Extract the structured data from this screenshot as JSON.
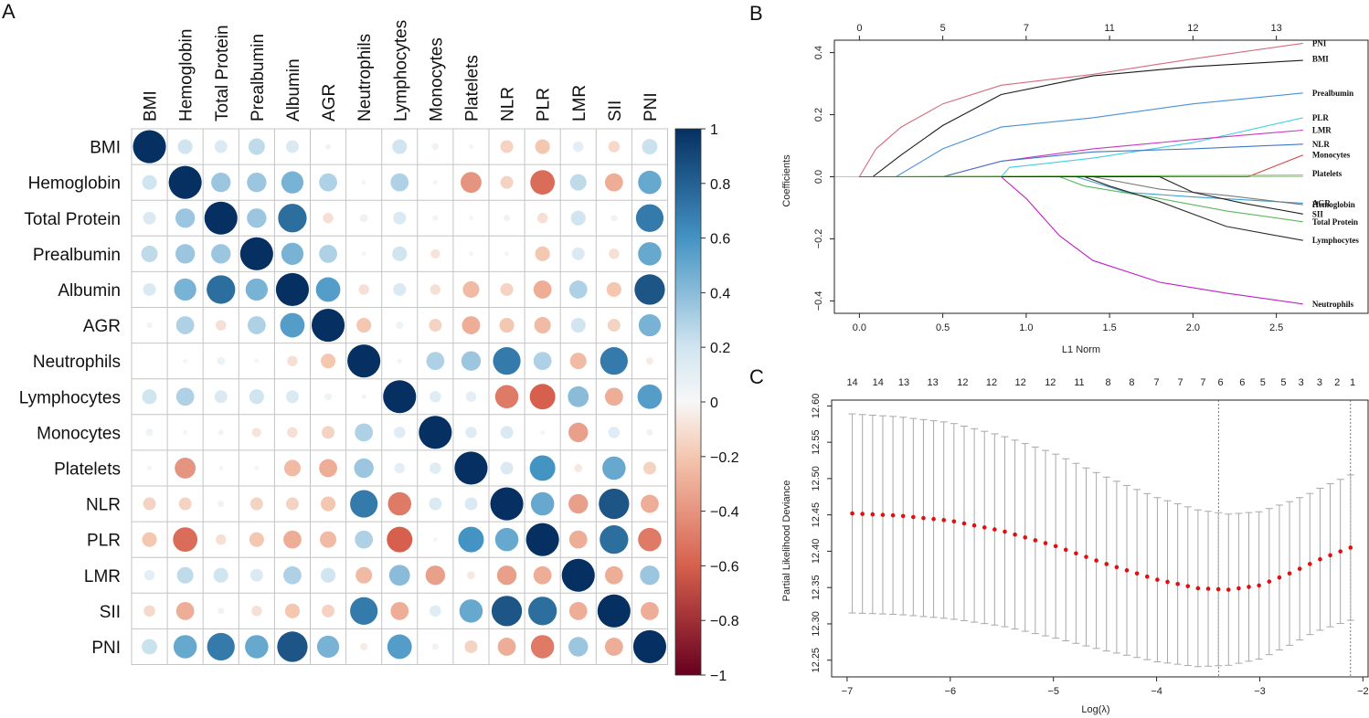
{
  "panels": {
    "a": "A",
    "b": "B",
    "c": "C"
  },
  "chart_data": [
    {
      "type": "heatmap",
      "panel": "A",
      "variables": [
        "BMI",
        "Hemoglobin",
        "Total Protein",
        "Prealbumin",
        "Albumin",
        "AGR",
        "Neutrophils",
        "Lymphocytes",
        "Monocytes",
        "Platelets",
        "NLR",
        "PLR",
        "LMR",
        "SII",
        "PNI"
      ],
      "values": [
        [
          1,
          0.2,
          0.15,
          0.25,
          0.15,
          0.03,
          0,
          0.2,
          0.05,
          0.02,
          -0.15,
          -0.2,
          0.1,
          -0.12,
          0.22
        ],
        [
          0.2,
          1,
          0.35,
          0.35,
          0.45,
          0.3,
          0.02,
          0.3,
          0.02,
          -0.4,
          -0.15,
          -0.55,
          0.25,
          -0.3,
          0.5
        ],
        [
          0.15,
          0.35,
          1,
          0.35,
          0.75,
          -0.1,
          0.06,
          0.15,
          0.03,
          0.02,
          0.04,
          -0.1,
          0.2,
          0.04,
          0.7
        ],
        [
          0.25,
          0.35,
          0.35,
          1,
          0.45,
          0.3,
          0.02,
          0.2,
          -0.08,
          0.02,
          0.02,
          -0.2,
          0.15,
          -0.1,
          0.5
        ],
        [
          0.15,
          0.45,
          0.75,
          0.45,
          1,
          0.55,
          -0.1,
          0.15,
          -0.1,
          -0.25,
          -0.15,
          -0.3,
          0.3,
          -0.2,
          0.85
        ],
        [
          0.03,
          0.3,
          -0.1,
          0.3,
          0.55,
          1,
          -0.2,
          0.05,
          -0.15,
          -0.3,
          -0.2,
          -0.25,
          0.2,
          -0.15,
          0.45
        ],
        [
          0,
          0.02,
          0.06,
          0.02,
          -0.1,
          -0.2,
          1,
          -0.02,
          0.3,
          0.35,
          0.7,
          0.3,
          -0.25,
          0.7,
          -0.05
        ],
        [
          0.2,
          0.3,
          0.15,
          0.2,
          0.15,
          0.05,
          -0.02,
          1,
          0.12,
          0.1,
          -0.5,
          -0.6,
          0.4,
          -0.3,
          0.55
        ],
        [
          0.05,
          0.02,
          0.03,
          -0.08,
          -0.1,
          -0.15,
          0.3,
          0.12,
          1,
          0.12,
          0.15,
          0.02,
          -0.35,
          0.12,
          0.04
        ],
        [
          0.02,
          -0.4,
          0.02,
          0.02,
          -0.25,
          -0.3,
          0.35,
          0.1,
          0.12,
          1,
          0.15,
          0.6,
          -0.06,
          0.5,
          -0.15
        ],
        [
          -0.15,
          -0.15,
          0.04,
          -0.15,
          -0.15,
          -0.2,
          0.7,
          -0.5,
          0.15,
          0.15,
          1,
          0.5,
          -0.35,
          0.85,
          -0.3
        ],
        [
          -0.2,
          -0.55,
          -0.1,
          -0.2,
          -0.3,
          -0.25,
          0.3,
          -0.6,
          0.02,
          0.6,
          0.5,
          1,
          -0.3,
          0.75,
          -0.5
        ],
        [
          0.1,
          0.25,
          0.2,
          0.15,
          0.3,
          0.2,
          -0.25,
          0.4,
          -0.35,
          -0.06,
          -0.35,
          -0.3,
          1,
          -0.3,
          0.35
        ],
        [
          -0.12,
          -0.3,
          0.04,
          -0.1,
          -0.2,
          -0.15,
          0.7,
          -0.3,
          0.12,
          0.5,
          0.85,
          0.75,
          -0.3,
          1,
          -0.3
        ],
        [
          0.22,
          0.5,
          0.7,
          0.5,
          0.85,
          0.45,
          -0.05,
          0.55,
          0.04,
          -0.15,
          -0.3,
          -0.5,
          0.35,
          -0.3,
          1
        ]
      ],
      "colorbar": {
        "ticks": [
          "1",
          "0.8",
          "0.6",
          "0.4",
          "0.2",
          "0",
          "−0.2",
          "−0.4",
          "−0.6",
          "−0.8",
          "−1"
        ],
        "low": "#67001f",
        "mid": "#f7f7f7",
        "high": "#053061"
      }
    },
    {
      "type": "line",
      "panel": "B",
      "title": "",
      "xlabel": "L1 Norm",
      "ylabel": "Coefficients",
      "xlim": [
        -0.15,
        3.05
      ],
      "ylim": [
        -0.44,
        0.44
      ],
      "xticks": [
        "0.0",
        "0.5",
        "1.0",
        "1.5",
        "2.0",
        "2.5"
      ],
      "xtick_values": [
        0,
        0.5,
        1,
        1.5,
        2,
        2.5
      ],
      "yticks": [
        "−0.4",
        "−0.2",
        "0.0",
        "0.2",
        "0.4"
      ],
      "ytick_values": [
        -0.4,
        -0.2,
        0,
        0.2,
        0.4
      ],
      "top_ticks": [
        "0",
        "5",
        "7",
        "11",
        "12",
        "13"
      ],
      "top_tick_values": [
        0,
        0.5,
        1.0,
        1.5,
        2.0,
        2.5
      ],
      "series": [
        {
          "name": "PNI",
          "color": "#d46a7e",
          "label_y": 0.43,
          "points": [
            [
              0,
              0
            ],
            [
              0.1,
              0.09
            ],
            [
              0.25,
              0.16
            ],
            [
              0.5,
              0.235
            ],
            [
              0.85,
              0.295
            ],
            [
              1.4,
              0.33
            ],
            [
              2.0,
              0.38
            ],
            [
              2.66,
              0.43
            ]
          ]
        },
        {
          "name": "BMI",
          "color": "#1a1a1a",
          "label_y": 0.38,
          "points": [
            [
              0,
              0
            ],
            [
              0.08,
              0
            ],
            [
              0.25,
              0.07
            ],
            [
              0.5,
              0.165
            ],
            [
              0.85,
              0.265
            ],
            [
              1.4,
              0.325
            ],
            [
              2.0,
              0.355
            ],
            [
              2.66,
              0.375
            ]
          ]
        },
        {
          "name": "Prealbumin",
          "color": "#4a90d9",
          "label_y": 0.27,
          "points": [
            [
              0,
              0
            ],
            [
              0.22,
              0
            ],
            [
              0.5,
              0.09
            ],
            [
              0.85,
              0.16
            ],
            [
              1.4,
              0.19
            ],
            [
              2.0,
              0.235
            ],
            [
              2.66,
              0.27
            ]
          ]
        },
        {
          "name": "PLR",
          "color": "#3fd0e0",
          "label_y": 0.19,
          "points": [
            [
              0,
              0
            ],
            [
              0.85,
              0
            ],
            [
              0.9,
              0.03
            ],
            [
              1.4,
              0.06
            ],
            [
              2.0,
              0.11
            ],
            [
              2.66,
              0.19
            ]
          ]
        },
        {
          "name": "LMR",
          "color": "#c838c0",
          "label_y": 0.15,
          "points": [
            [
              0,
              0
            ],
            [
              0.5,
              0
            ],
            [
              0.85,
              0.05
            ],
            [
              1.4,
              0.09
            ],
            [
              2.0,
              0.12
            ],
            [
              2.66,
              0.15
            ]
          ]
        },
        {
          "name": "NLR",
          "color": "#3e78c8",
          "label_y": 0.105,
          "points": [
            [
              0,
              0
            ],
            [
              0.5,
              0
            ],
            [
              0.85,
              0.05
            ],
            [
              1.4,
              0.08
            ],
            [
              2.0,
              0.09
            ],
            [
              2.66,
              0.105
            ]
          ]
        },
        {
          "name": "Monocytes",
          "color": "#d94040",
          "label_y": 0.07,
          "points": [
            [
              0,
              0
            ],
            [
              2.33,
              0
            ],
            [
              2.66,
              0.07
            ]
          ]
        },
        {
          "name": "Platelets",
          "color": "#6bbf4e",
          "label_y": 0.01,
          "points": [
            [
              0,
              0
            ],
            [
              2.66,
              0.005
            ]
          ]
        },
        {
          "name": "AGR",
          "color": "#3a9fd0",
          "label_y": -0.085,
          "points": [
            [
              0,
              0
            ],
            [
              1.3,
              0
            ],
            [
              1.6,
              -0.05
            ],
            [
              2.0,
              -0.065
            ],
            [
              2.66,
              -0.085
            ]
          ]
        },
        {
          "name": "Hemoglobin",
          "color": "#7a7a7a",
          "label_y": -0.09,
          "points": [
            [
              0,
              0
            ],
            [
              1.4,
              0
            ],
            [
              1.8,
              -0.04
            ],
            [
              2.2,
              -0.06
            ],
            [
              2.66,
              -0.09
            ]
          ]
        },
        {
          "name": "SII",
          "color": "#222222",
          "label_y": -0.12,
          "points": [
            [
              0,
              0
            ],
            [
              1.8,
              0
            ],
            [
              2.0,
              -0.05
            ],
            [
              2.3,
              -0.085
            ],
            [
              2.66,
              -0.12
            ]
          ]
        },
        {
          "name": "Total Protein",
          "color": "#5cb85c",
          "label_y": -0.145,
          "points": [
            [
              0,
              0
            ],
            [
              1.2,
              0
            ],
            [
              1.35,
              -0.03
            ],
            [
              1.8,
              -0.07
            ],
            [
              2.2,
              -0.11
            ],
            [
              2.66,
              -0.145
            ]
          ]
        },
        {
          "name": "Lymphocytes",
          "color": "#2b2b2b",
          "label_y": -0.205,
          "points": [
            [
              0,
              0
            ],
            [
              1.35,
              0
            ],
            [
              1.5,
              -0.03
            ],
            [
              1.8,
              -0.08
            ],
            [
              2.2,
              -0.16
            ],
            [
              2.66,
              -0.205
            ]
          ]
        },
        {
          "name": "Neutrophils",
          "color": "#c020c8",
          "label_y": -0.41,
          "points": [
            [
              0,
              0
            ],
            [
              0.85,
              0
            ],
            [
              1.0,
              -0.07
            ],
            [
              1.2,
              -0.19
            ],
            [
              1.4,
              -0.27
            ],
            [
              1.8,
              -0.34
            ],
            [
              2.2,
              -0.375
            ],
            [
              2.66,
              -0.41
            ]
          ]
        }
      ]
    },
    {
      "type": "scatter",
      "panel": "C",
      "xlabel": "Log(λ)",
      "ylabel": "Partial Likelihood Deviance",
      "xlim": [
        -7.15,
        -1.95
      ],
      "ylim": [
        12.227,
        12.608
      ],
      "xticks": [
        "−7",
        "−6",
        "−5",
        "−4",
        "−3",
        "−2"
      ],
      "xtick_values": [
        -7,
        -6,
        -5,
        -4,
        -3,
        -2
      ],
      "yticks": [
        "12.25",
        "12.30",
        "12.35",
        "12.40",
        "12.45",
        "12.50",
        "12.55",
        "12.60"
      ],
      "ytick_values": [
        12.25,
        12.3,
        12.35,
        12.4,
        12.45,
        12.5,
        12.55,
        12.6
      ],
      "top_ticks": [
        "14",
        "14",
        "13",
        "13",
        "12",
        "12",
        "12",
        "12",
        "11",
        "8",
        "8",
        "7",
        "7",
        "7",
        "6",
        "6",
        "5",
        "5",
        "3",
        "3",
        "2",
        "1"
      ],
      "top_tick_values": [
        -6.95,
        -6.7,
        -6.45,
        -6.17,
        -5.88,
        -5.6,
        -5.32,
        -5.03,
        -4.75,
        -4.47,
        -4.24,
        -4.0,
        -3.77,
        -3.55,
        -3.38,
        -3.17,
        -2.97,
        -2.77,
        -2.6,
        -2.42,
        -2.25,
        -2.1
      ],
      "lambda_min": -3.4,
      "lambda_1se": -2.12,
      "point_color": "#e01010",
      "errorbar_color": "#a8a8a8",
      "x_start": -6.95,
      "x_end": -2.12,
      "n_points": 50,
      "mean_curve": [
        [
          -6.95,
          12.452
        ],
        [
          -6.5,
          12.449
        ],
        [
          -6,
          12.442
        ],
        [
          -5.5,
          12.428
        ],
        [
          -5,
          12.408
        ],
        [
          -4.5,
          12.383
        ],
        [
          -4,
          12.361
        ],
        [
          -3.6,
          12.349
        ],
        [
          -3.3,
          12.347
        ],
        [
          -3,
          12.353
        ],
        [
          -2.7,
          12.37
        ],
        [
          -2.4,
          12.39
        ],
        [
          -2.12,
          12.405
        ]
      ],
      "se_curve": [
        [
          -6.95,
          0.137
        ],
        [
          -6,
          0.135
        ],
        [
          -5,
          0.127
        ],
        [
          -4.3,
          0.117
        ],
        [
          -3.3,
          0.104
        ],
        [
          -2.5,
          0.097
        ],
        [
          -2.12,
          0.1
        ]
      ]
    }
  ]
}
